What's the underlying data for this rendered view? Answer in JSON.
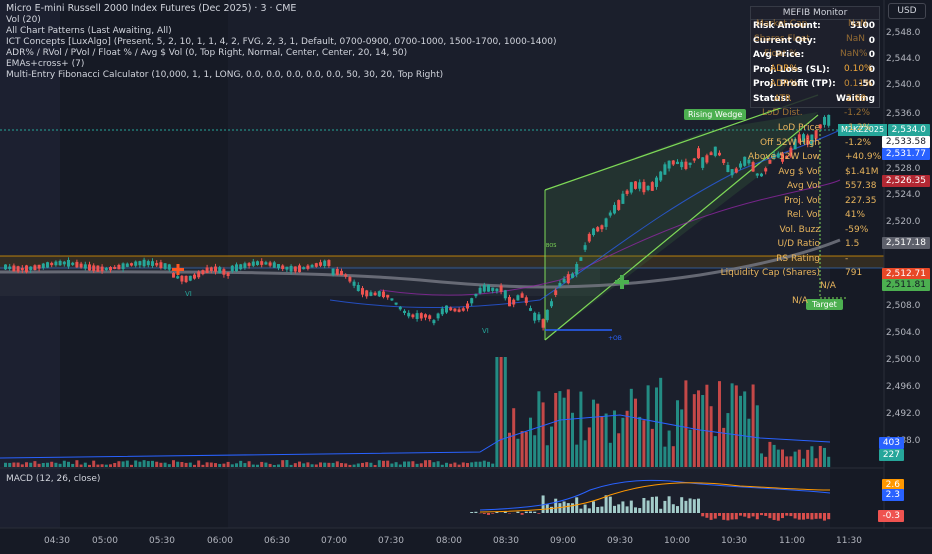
{
  "legend": {
    "title": "Micro E-mini Russell 2000 Index Futures (Dec 2025) · 3 · CME",
    "lines": [
      "Vol (20)",
      "All Chart Patterns (Last Awaiting, All)",
      "ICT Concepts [LuxAlgo] (Present, 5, 2, 10, 1, 1, 4, 2, FVG, 2, 3, 1, Default, 0700-0900, 0700-1000, 1500-1700, 1000-1400)",
      "ADR% / RVol / PVol / Float % / Avg $ Vol (0, Top Right, Normal, Center, Center, 20, 14, 50)",
      "EMAs+cross+ (7)",
      "Multi-Entry Fibonacci Calculator (10,000, 1, 1, LONG, 0.0, 0.0, 0.0, 0.0, 0.0, 50, 30, 20, Top Right)"
    ],
    "macd": "MACD (12, 26, close)"
  },
  "currency": "USD",
  "price_axis": [
    "2,548.0",
    "2,544.0",
    "2,540.0",
    "2,536.0",
    "2,528.0",
    "2,524.0",
    "2,520.0",
    "2,508.0",
    "2,504.0",
    "2,500.0",
    "2,496.0",
    "2,492.0",
    "2,488.0"
  ],
  "price_tags": {
    "last": "2,534.0",
    "symbol": "M2KZ2025",
    "t2": "2,533.58",
    "t3": "2,531.77",
    "t4": "2,526.35",
    "t5": "2,517.18",
    "t6": "2,512.71",
    "t7": "2,511.81",
    "vol1": "403",
    "vol2": "227",
    "macd1": "2.6",
    "macd2": "2.3",
    "macd3": "-0.3"
  },
  "time_axis": [
    "04:30",
    "05:00",
    "05:30",
    "06:00",
    "06:30",
    "07:00",
    "07:30",
    "08:00",
    "08:30",
    "09:00",
    "09:30",
    "10:00",
    "10:30",
    "11:00",
    "11:30"
  ],
  "monitor": {
    "title": "MEFIB Monitor",
    "rows": [
      {
        "k": "Risk Amount:",
        "v": "5100"
      },
      {
        "k": "Current Qty:",
        "v": "0"
      },
      {
        "k": "Avg Price:",
        "v": "0"
      },
      {
        "k": "Proj. Loss (SL):",
        "v": "0"
      },
      {
        "k": "Proj. Profit (TP):",
        "v": "-50"
      },
      {
        "k": "Status:",
        "v": "Waiting"
      }
    ]
  },
  "overlay_right": {
    "ghost": [
      "Market Cap",
      "NaN",
      "Shares Float",
      "NaN",
      "Float %",
      "NaN%",
      "ADR%",
      "0.10%",
      "ADR%",
      "0.11%",
      "ATR",
      "2.68",
      "LoD Dist.",
      "-1.2%"
    ]
  },
  "stats": [
    {
      "k": "LoD Price",
      "v": "-1.2%"
    },
    {
      "k": "Off 52W High",
      "v": "-1.2%"
    },
    {
      "k": "Above 52W Low",
      "v": "+40.9%"
    },
    {
      "k": "Avg $ Vol",
      "v": "$1.41M"
    },
    {
      "k": "Avg Vol",
      "v": "557.38"
    },
    {
      "k": "Proj. Vol",
      "v": "227.35"
    },
    {
      "k": "Rel. Vol",
      "v": "41%"
    },
    {
      "k": "Vol. Buzz",
      "v": "-59%"
    },
    {
      "k": "U/D Ratio",
      "v": "1.5"
    },
    {
      "k": "RS Rating",
      "v": "-"
    },
    {
      "k": "Liquidity Cap (Shares)",
      "v": "791"
    }
  ],
  "na1": "N/A",
  "na2": "N/A",
  "labels": {
    "wedge": "Rising Wedge",
    "target": "Target",
    "vi1": "VI",
    "vi2": "VI",
    "ob": "+OB",
    "small": "BOS"
  },
  "colors": {
    "up": "#26a69a",
    "down": "#ef5350",
    "accent": "#2962ff",
    "bg": "#161a25"
  }
}
